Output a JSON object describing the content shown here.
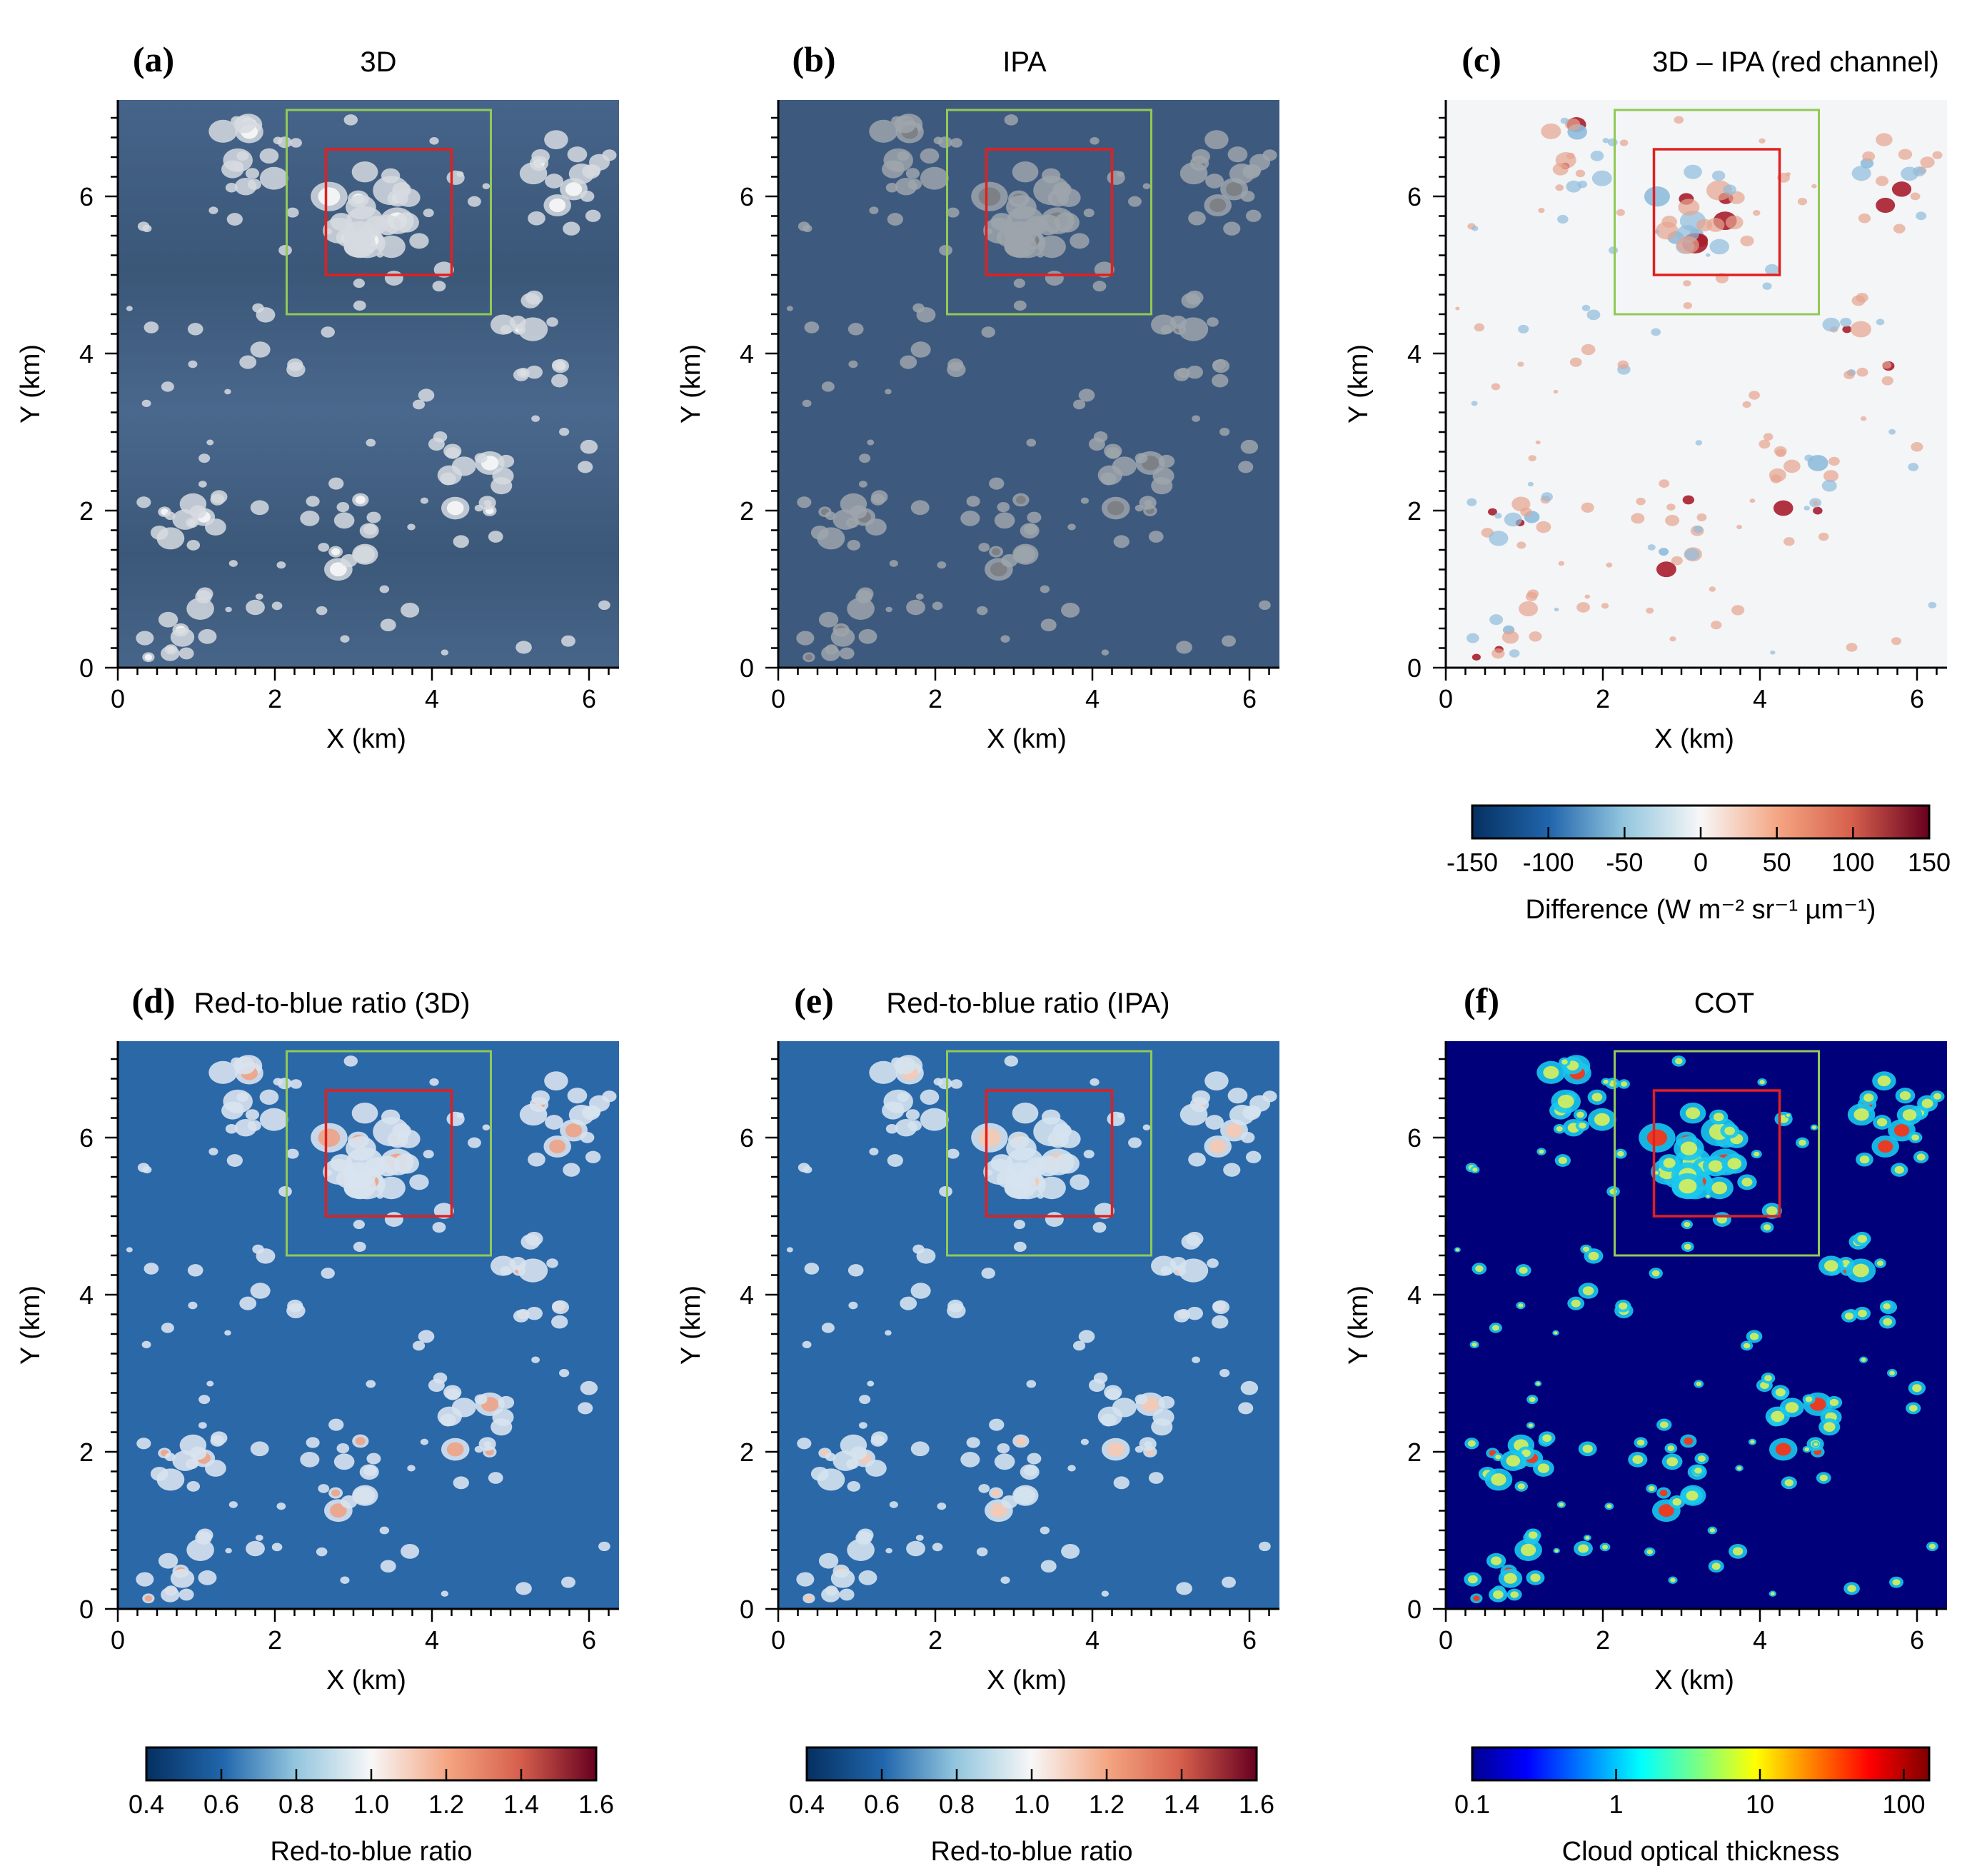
{
  "figure": {
    "axis_xlabel": "X (km)",
    "axis_ylabel": "Y (km)",
    "x_ticks": [
      "0",
      "2",
      "4",
      "6"
    ],
    "y_ticks": [
      "0",
      "2",
      "4",
      "6"
    ]
  },
  "panels": [
    {
      "letter": "(a)",
      "title": "3D",
      "style": "3d"
    },
    {
      "letter": "(b)",
      "title": "IPA",
      "style": "ipa"
    },
    {
      "letter": "(c)",
      "title": "3D – IPA (red channel)",
      "style": "diff"
    },
    {
      "letter": "(d)",
      "title": "Red-to-blue ratio (3D)",
      "style": "rb3d"
    },
    {
      "letter": "(e)",
      "title": "Red-to-blue ratio  (IPA)",
      "style": "rbipa"
    },
    {
      "letter": "(f)",
      "title": "COT",
      "style": "cot"
    }
  ],
  "colorbars": [
    {
      "ticks": [
        "-150",
        "-100",
        "-50",
        "0",
        "50",
        "100",
        "150"
      ],
      "label": "Difference (W m⁻² sr⁻¹ µm⁻¹)",
      "palette": "rdbu"
    },
    {
      "ticks": [
        "0.4",
        "0.6",
        "0.8",
        "1.0",
        "1.2",
        "1.4",
        "1.6"
      ],
      "label": "Red-to-blue ratio",
      "palette": "rdbu"
    },
    {
      "ticks": [
        "0.4",
        "0.6",
        "0.8",
        "1.0",
        "1.2",
        "1.4",
        "1.6"
      ],
      "label": "Red-to-blue ratio",
      "palette": "rdbu"
    },
    {
      "ticks": [
        "0.1",
        "1",
        "10",
        "100"
      ],
      "label": "Cloud optical thickness",
      "palette": "jet"
    }
  ],
  "colors": {
    "sea_3d": "#3f5d80",
    "sea_ipa": "#3d5a7e",
    "green_box": "#92c957",
    "red_box": "#e0201f",
    "rb_background": "#2a68a8",
    "cot_background": "#00007a"
  },
  "chart_data": {
    "type": "heatmap",
    "domain_km": {
      "x": [
        0,
        6.4
      ],
      "y": [
        0,
        7.2
      ]
    },
    "xlim": [
      0,
      6.4
    ],
    "ylim": [
      0,
      7.2
    ],
    "green_box_km": {
      "x": [
        2.15,
        4.75
      ],
      "y": [
        4.5,
        7.1
      ]
    },
    "red_box_km": {
      "x": [
        2.65,
        4.25
      ],
      "y": [
        5.0,
        6.6
      ]
    },
    "difference_range": [
      -150,
      150
    ],
    "ratio_range": [
      0.4,
      1.6
    ],
    "cot_range": [
      0.1,
      150
    ],
    "cloud_clusters_km": [
      {
        "x": 3.2,
        "y": 5.8
      },
      {
        "x": 4.5,
        "y": 2.4
      },
      {
        "x": 2.8,
        "y": 1.7
      },
      {
        "x": 0.9,
        "y": 1.8
      },
      {
        "x": 1.7,
        "y": 6.5
      },
      {
        "x": 5.7,
        "y": 6.3
      },
      {
        "x": 5.3,
        "y": 4.0
      },
      {
        "x": 0.7,
        "y": 0.5
      }
    ]
  }
}
